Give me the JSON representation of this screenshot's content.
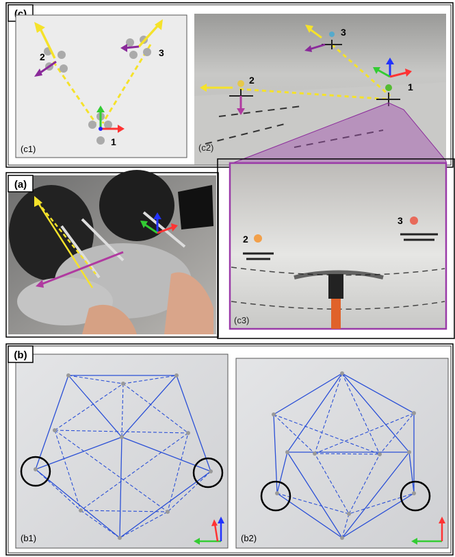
{
  "panels": {
    "c": {
      "label": "(c)",
      "c1": {
        "label": "(c1)",
        "drones": [
          "1",
          "2",
          "3"
        ]
      },
      "c2": {
        "label": "(c2)",
        "drones": [
          "1",
          "2",
          "3"
        ]
      },
      "c3": {
        "label": "(c3)",
        "drones": [
          "2",
          "3"
        ]
      }
    },
    "a": {
      "label": "(a)"
    },
    "b": {
      "label": "(b)",
      "b1": {
        "label": "(b1)"
      },
      "b2": {
        "label": "(b2)"
      }
    }
  }
}
